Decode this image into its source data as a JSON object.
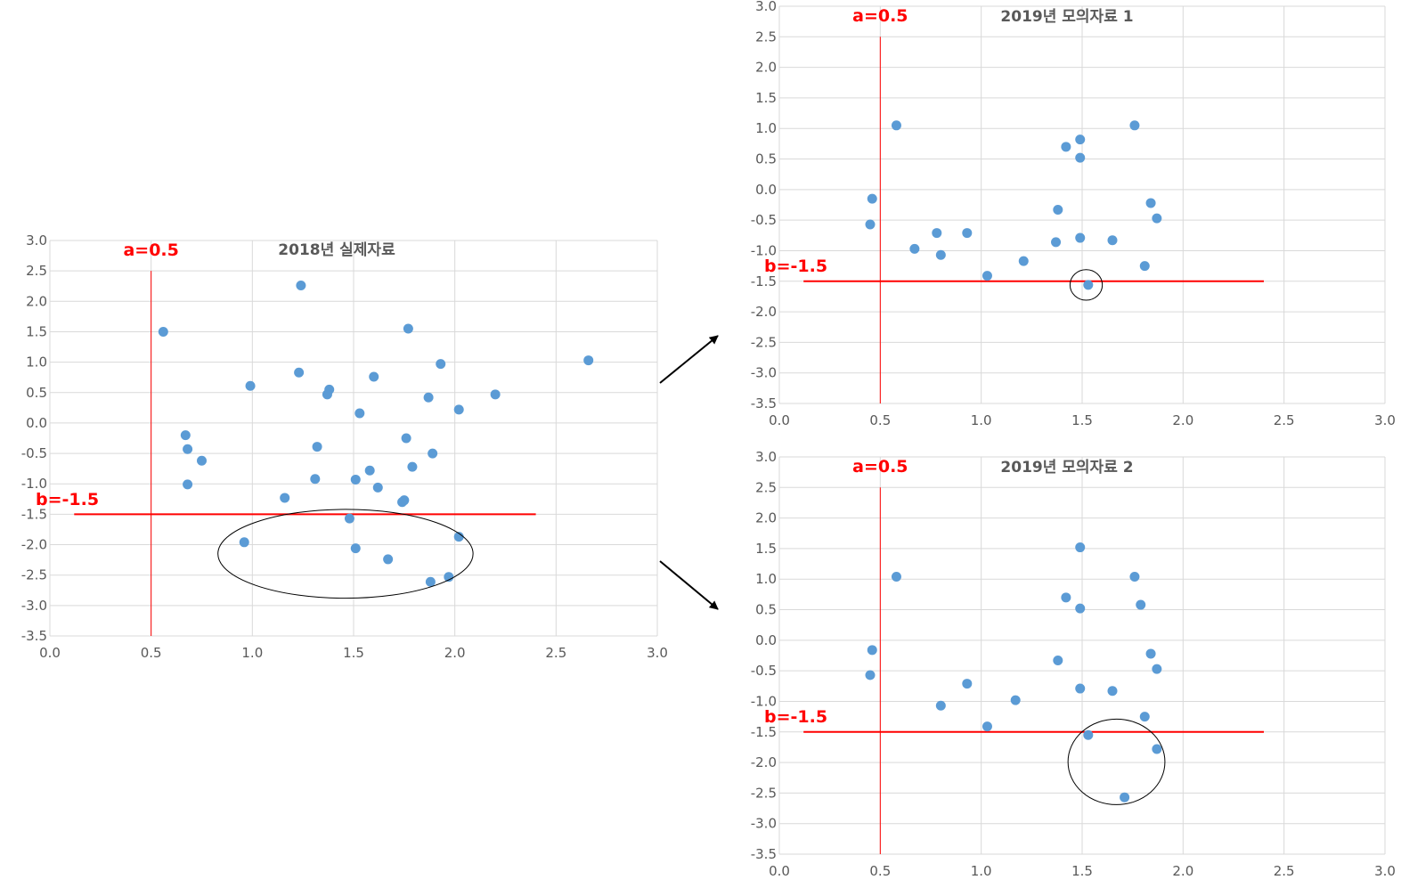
{
  "colors": {
    "point": "#5b9bd5",
    "reference": "#ff0000",
    "grid": "#d9d9d9",
    "text": "#595959",
    "highlight": "#000000"
  },
  "chart_data": [
    {
      "type": "scatter",
      "title": "2018년 실제자료",
      "xlim": [
        0,
        3
      ],
      "ylim": [
        -3.5,
        3
      ],
      "x_ticks": [
        "0.0",
        "0.5",
        "1.0",
        "1.5",
        "2.0",
        "2.5",
        "3.0"
      ],
      "y_ticks": [
        "3.0",
        "2.5",
        "2.0",
        "1.5",
        "1.0",
        "0.5",
        "0.0",
        "-0.5",
        "-1.0",
        "-1.5",
        "-2.0",
        "-2.5",
        "-3.0",
        "-3.5"
      ],
      "grid": true,
      "ref_lines": {
        "a_label": "a=0.5",
        "a_value": 0.5,
        "a_y_extent": [
          -3.5,
          2.5
        ],
        "b_label": "b=-1.5",
        "b_value": -1.5,
        "b_x_extent": [
          0.12,
          2.4
        ]
      },
      "highlight_ellipse": {
        "cx": 1.46,
        "cy": -2.15,
        "rx": 0.63,
        "ry": 0.73
      },
      "points": [
        [
          0.56,
          1.5
        ],
        [
          1.24,
          2.26
        ],
        [
          1.77,
          1.55
        ],
        [
          2.66,
          1.03
        ],
        [
          1.93,
          0.97
        ],
        [
          1.23,
          0.83
        ],
        [
          1.6,
          0.76
        ],
        [
          0.99,
          0.61
        ],
        [
          1.38,
          0.55
        ],
        [
          1.37,
          0.47
        ],
        [
          2.2,
          0.47
        ],
        [
          1.87,
          0.42
        ],
        [
          2.02,
          0.22
        ],
        [
          1.53,
          0.16
        ],
        [
          0.67,
          -0.2
        ],
        [
          1.76,
          -0.25
        ],
        [
          1.32,
          -0.39
        ],
        [
          0.68,
          -0.43
        ],
        [
          1.89,
          -0.5
        ],
        [
          0.75,
          -0.62
        ],
        [
          1.79,
          -0.72
        ],
        [
          1.58,
          -0.78
        ],
        [
          1.31,
          -0.92
        ],
        [
          1.51,
          -0.93
        ],
        [
          0.68,
          -1.01
        ],
        [
          1.62,
          -1.06
        ],
        [
          1.16,
          -1.23
        ],
        [
          1.75,
          -1.27
        ],
        [
          1.74,
          -1.3
        ],
        [
          1.48,
          -1.57
        ],
        [
          0.96,
          -1.96
        ],
        [
          2.02,
          -1.87
        ],
        [
          1.51,
          -2.06
        ],
        [
          1.67,
          -2.24
        ],
        [
          1.97,
          -2.53
        ],
        [
          1.88,
          -2.61
        ]
      ]
    },
    {
      "type": "scatter",
      "title": "2019년 모의자료 1",
      "xlim": [
        0,
        3
      ],
      "ylim": [
        -3.5,
        3
      ],
      "x_ticks": [
        "0.0",
        "0.5",
        "1.0",
        "1.5",
        "2.0",
        "2.5",
        "3.0"
      ],
      "y_ticks": [
        "3.0",
        "2.5",
        "2.0",
        "1.5",
        "1.0",
        "0.5",
        "0.0",
        "-0.5",
        "-1.0",
        "-1.5",
        "-2.0",
        "-2.5",
        "-3.0",
        "-3.5"
      ],
      "grid": true,
      "ref_lines": {
        "a_label": "a=0.5",
        "a_value": 0.5,
        "a_y_extent": [
          -3.5,
          2.5
        ],
        "b_label": "b=-1.5",
        "b_value": -1.5,
        "b_x_extent": [
          0.12,
          2.4
        ]
      },
      "highlight_ellipse": {
        "cx": 1.52,
        "cy": -1.56,
        "rx": 0.08,
        "ry": 0.25
      },
      "points": [
        [
          0.58,
          1.05
        ],
        [
          1.76,
          1.05
        ],
        [
          1.49,
          0.82
        ],
        [
          1.42,
          0.7
        ],
        [
          1.49,
          0.52
        ],
        [
          0.46,
          -0.15
        ],
        [
          1.84,
          -0.22
        ],
        [
          1.38,
          -0.33
        ],
        [
          1.87,
          -0.47
        ],
        [
          0.45,
          -0.57
        ],
        [
          0.78,
          -0.71
        ],
        [
          0.93,
          -0.71
        ],
        [
          1.49,
          -0.79
        ],
        [
          1.65,
          -0.83
        ],
        [
          1.37,
          -0.86
        ],
        [
          0.67,
          -0.97
        ],
        [
          0.8,
          -1.07
        ],
        [
          1.21,
          -1.17
        ],
        [
          1.81,
          -1.25
        ],
        [
          1.03,
          -1.41
        ],
        [
          1.53,
          -1.56
        ]
      ]
    },
    {
      "type": "scatter",
      "title": "2019년 모의자료 2",
      "xlim": [
        0,
        3
      ],
      "ylim": [
        -3.5,
        3
      ],
      "x_ticks": [
        "0.0",
        "0.5",
        "1.0",
        "1.5",
        "2.0",
        "2.5",
        "3.0"
      ],
      "y_ticks": [
        "3.0",
        "2.5",
        "2.0",
        "1.5",
        "1.0",
        "0.5",
        "0.0",
        "-0.5",
        "-1.0",
        "-1.5",
        "-2.0",
        "-2.5",
        "-3.0",
        "-3.5"
      ],
      "grid": true,
      "ref_lines": {
        "a_label": "a=0.5",
        "a_value": 0.5,
        "a_y_extent": [
          -3.5,
          2.5
        ],
        "b_label": "b=-1.5",
        "b_value": -1.5,
        "b_x_extent": [
          0.12,
          2.4
        ]
      },
      "highlight_ellipse": {
        "cx": 1.67,
        "cy": -1.99,
        "rx": 0.24,
        "ry": 0.7
      },
      "points": [
        [
          1.49,
          1.52
        ],
        [
          0.58,
          1.04
        ],
        [
          1.76,
          1.04
        ],
        [
          1.42,
          0.7
        ],
        [
          1.79,
          0.58
        ],
        [
          1.49,
          0.52
        ],
        [
          0.46,
          -0.16
        ],
        [
          1.84,
          -0.22
        ],
        [
          1.38,
          -0.33
        ],
        [
          1.87,
          -0.47
        ],
        [
          0.45,
          -0.57
        ],
        [
          0.93,
          -0.71
        ],
        [
          1.49,
          -0.79
        ],
        [
          1.65,
          -0.83
        ],
        [
          1.17,
          -0.98
        ],
        [
          0.8,
          -1.07
        ],
        [
          1.81,
          -1.25
        ],
        [
          1.03,
          -1.41
        ],
        [
          1.53,
          -1.55
        ],
        [
          1.87,
          -1.78
        ],
        [
          1.71,
          -2.57
        ]
      ]
    }
  ]
}
